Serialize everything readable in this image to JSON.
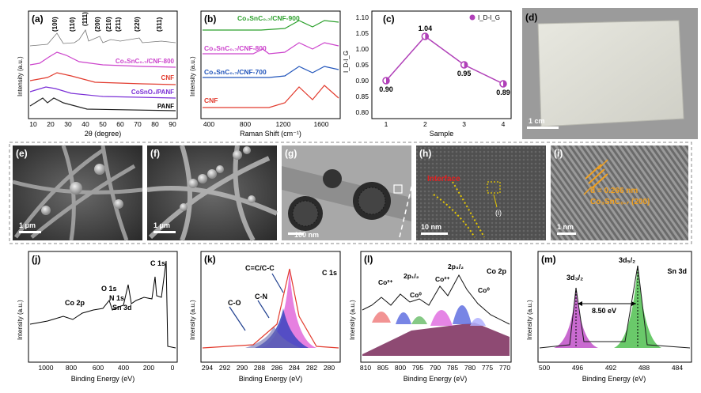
{
  "panels": {
    "a": {
      "label": "(a)",
      "ylabel": "Intensity (a.u.)",
      "xlabel": "2θ (degree)",
      "xticks": [
        "10",
        "20",
        "30",
        "40",
        "50",
        "60",
        "70",
        "80",
        "90"
      ],
      "peaks": [
        "(100)",
        "(110)",
        "(111)",
        "(200)",
        "(210)",
        "(211)",
        "(220)",
        "(311)"
      ],
      "curves": [
        {
          "name": "Co3SnC0.7/CNF-800",
          "color": "#cc44cc"
        },
        {
          "name": "CNF",
          "color": "#e23b2e"
        },
        {
          "name": "CoSnO2/PANF",
          "color": "#7a2fd6"
        },
        {
          "name": "PANF",
          "color": "#222222"
        }
      ],
      "labels": {
        "l1": "Co₃SnC₀.₇/CNF-800",
        "l2": "CNF",
        "l3": "CoSnO₂/PANF",
        "l4": "PANF"
      }
    },
    "b": {
      "label": "(b)",
      "ylabel": "Intensity (a.u.)",
      "xlabel": "Raman Shift (cm⁻¹)",
      "xticks": [
        "400",
        "800",
        "1200",
        "1600"
      ],
      "labels": {
        "l1": "Co₃SnC₀.₇/CNF-900",
        "l2": "Co₃SnC₀.₇/CNF-800",
        "l3": "Co₃SnC₀.₇/CNF-700",
        "l4": "CNF"
      },
      "colors": [
        "#2ca02c",
        "#cc44cc",
        "#2255bb",
        "#e23b2e"
      ]
    },
    "c": {
      "label": "(c)",
      "ylabel": "I_D-I_G",
      "xlabel": "Sample",
      "legend": "I_D-I_G",
      "yticks": [
        "0.80",
        "0.85",
        "0.90",
        "0.95",
        "1.00",
        "1.05",
        "1.10"
      ],
      "xticks": [
        "1",
        "2",
        "3",
        "4"
      ],
      "chart_data": {
        "type": "line",
        "x": [
          1,
          2,
          3,
          4
        ],
        "values": [
          0.9,
          1.04,
          0.95,
          0.89
        ],
        "data_labels": [
          "0.90",
          "1.04",
          "0.95",
          "0.89"
        ],
        "ylim": [
          0.8,
          1.1
        ],
        "xlabel": "Sample",
        "ylabel": "I_D-I_G",
        "color": "#b040b8"
      }
    },
    "d": {
      "label": "(d)",
      "scale": "1 cm"
    },
    "e": {
      "label": "(e)",
      "scale": "1 μm"
    },
    "f": {
      "label": "(f)",
      "scale": "1 μm"
    },
    "g": {
      "label": "(g)",
      "scale": "100 nm"
    },
    "h": {
      "label": "(h)",
      "scale": "10 nm",
      "interface": "Interface",
      "marker": "(i)"
    },
    "i": {
      "label": "(i)",
      "scale": "1 nm",
      "dspacing": "d = 0.266 nm",
      "phase": "Co₃SnC₀.₇ (200)"
    },
    "j": {
      "label": "(j)",
      "ylabel": "Intensity (a.u.)",
      "xlabel": "Binding Energy (eV)",
      "xticks": [
        "1000",
        "800",
        "600",
        "400",
        "200",
        "0"
      ],
      "peaks": {
        "c1s": "C 1s",
        "o1s": "O 1s",
        "n1s": "N 1s",
        "sn3d": "Sn 3d",
        "co2p": "Co 2p"
      }
    },
    "k": {
      "label": "(k)",
      "title": "C 1s",
      "ylabel": "Intensity (a.u.)",
      "xlabel": "Binding Energy (eV)",
      "xticks": [
        "294",
        "292",
        "290",
        "288",
        "286",
        "284",
        "282",
        "280"
      ],
      "peaks": {
        "cc": "C=C/C-C",
        "cn": "C-N",
        "co": "C-O"
      }
    },
    "l": {
      "label": "(l)",
      "title": "Co 2p",
      "ylabel": "Intensity (a.u.)",
      "xlabel": "Binding Energy (eV)",
      "xticks": [
        "810",
        "805",
        "800",
        "795",
        "790",
        "785",
        "780",
        "775",
        "770"
      ],
      "peaks": {
        "p32": "2p₃/₂",
        "p12": "2p₁/₂",
        "co2a": "Co²⁺",
        "co2b": "Co²⁺",
        "co0a": "Co⁰",
        "co0b": "Co⁰"
      }
    },
    "m": {
      "label": "(m)",
      "title": "Sn 3d",
      "ylabel": "Intensity (a.u.)",
      "xlabel": "Binding Energy (eV)",
      "xticks": [
        "500",
        "496",
        "492",
        "488",
        "484"
      ],
      "peaks": {
        "d32": "3d₃/₂",
        "d52": "3d₅/₂"
      },
      "split": "8.50 eV"
    }
  }
}
